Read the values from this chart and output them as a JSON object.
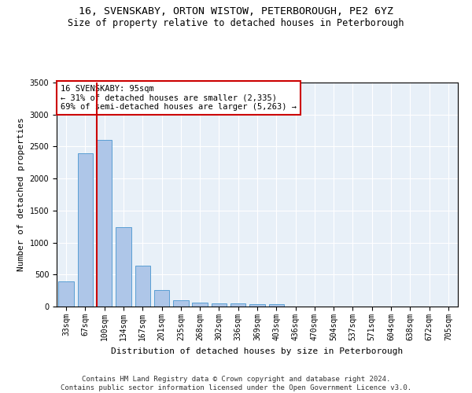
{
  "title1": "16, SVENSKABY, ORTON WISTOW, PETERBOROUGH, PE2 6YZ",
  "title2": "Size of property relative to detached houses in Peterborough",
  "xlabel": "Distribution of detached houses by size in Peterborough",
  "ylabel": "Number of detached properties",
  "categories": [
    "33sqm",
    "67sqm",
    "100sqm",
    "134sqm",
    "167sqm",
    "201sqm",
    "235sqm",
    "268sqm",
    "302sqm",
    "336sqm",
    "369sqm",
    "403sqm",
    "436sqm",
    "470sqm",
    "504sqm",
    "537sqm",
    "571sqm",
    "604sqm",
    "638sqm",
    "672sqm",
    "705sqm"
  ],
  "values": [
    390,
    2400,
    2600,
    1240,
    640,
    255,
    100,
    58,
    55,
    50,
    38,
    32,
    0,
    0,
    0,
    0,
    0,
    0,
    0,
    0,
    0
  ],
  "bar_color": "#aec6e8",
  "bar_edge_color": "#5a9fd4",
  "vline_color": "#cc0000",
  "annotation_text": "16 SVENSKABY: 95sqm\n← 31% of detached houses are smaller (2,335)\n69% of semi-detached houses are larger (5,263) →",
  "annotation_box_color": "#ffffff",
  "annotation_box_edge": "#cc0000",
  "ylim": [
    0,
    3500
  ],
  "yticks": [
    0,
    500,
    1000,
    1500,
    2000,
    2500,
    3000,
    3500
  ],
  "background_color": "#e8f0f8",
  "footer": "Contains HM Land Registry data © Crown copyright and database right 2024.\nContains public sector information licensed under the Open Government Licence v3.0.",
  "title1_fontsize": 9.5,
  "title2_fontsize": 8.5,
  "xlabel_fontsize": 8,
  "ylabel_fontsize": 8,
  "tick_fontsize": 7,
  "annotation_fontsize": 7.5,
  "footer_fontsize": 6.5
}
